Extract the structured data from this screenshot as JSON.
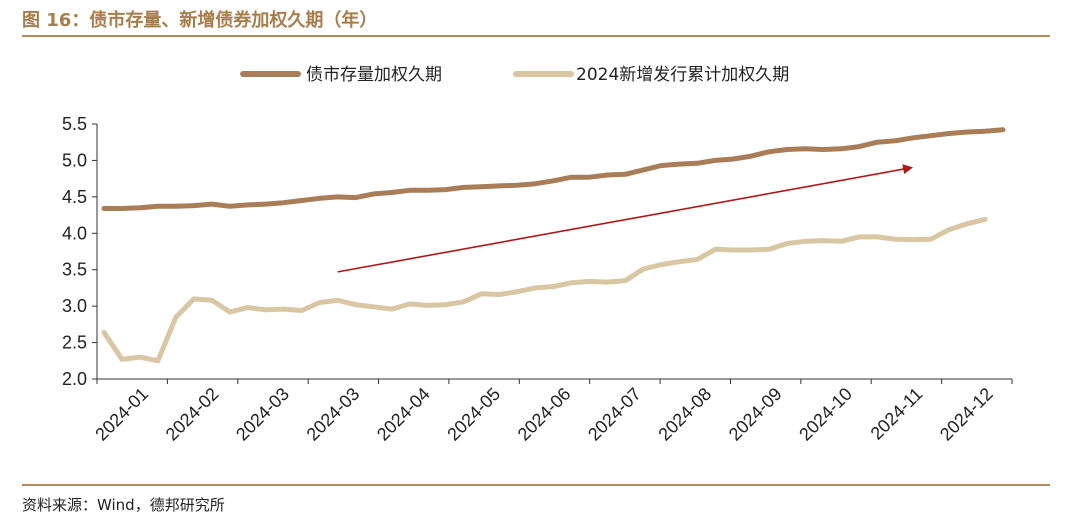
{
  "header": {
    "title": "图 16：债市存量、新增债券加权久期（年）"
  },
  "footer": {
    "source": "资料来源：Wind，德邦研究所"
  },
  "chart_data": {
    "type": "line",
    "title": "",
    "xlabel": "",
    "ylabel": "",
    "ylim": [
      2.0,
      5.5
    ],
    "yticks": [
      "2.0",
      "2.5",
      "3.0",
      "3.5",
      "4.0",
      "4.5",
      "5.0",
      "5.5"
    ],
    "xtick_labels": [
      "2024-01",
      "2024-02",
      "2024-03",
      "2024-03",
      "2024-04",
      "2024-05",
      "2024-06",
      "2024-07",
      "2024-08",
      "2024-09",
      "2024-10",
      "2024-11",
      "2024-12"
    ],
    "legend_position": "top",
    "grid": false,
    "series": [
      {
        "name": "债市存量加权久期",
        "color": "#a87d57",
        "values": [
          4.34,
          4.34,
          4.35,
          4.37,
          4.37,
          4.38,
          4.4,
          4.37,
          4.39,
          4.4,
          4.42,
          4.45,
          4.48,
          4.5,
          4.49,
          4.54,
          4.56,
          4.59,
          4.59,
          4.6,
          4.63,
          4.64,
          4.65,
          4.66,
          4.68,
          4.72,
          4.77,
          4.77,
          4.8,
          4.81,
          4.87,
          4.93,
          4.95,
          4.96,
          5.0,
          5.02,
          5.06,
          5.12,
          5.15,
          5.16,
          5.15,
          5.16,
          5.19,
          5.25,
          5.27,
          5.31,
          5.34,
          5.37,
          5.39,
          5.4,
          5.42
        ]
      },
      {
        "name": "2024新增发行累计加权久期",
        "color": "#d9c6a2",
        "values": [
          2.64,
          2.27,
          2.3,
          2.25,
          2.85,
          3.1,
          3.08,
          2.92,
          2.98,
          2.95,
          2.96,
          2.94,
          3.05,
          3.08,
          3.02,
          2.99,
          2.96,
          3.03,
          3.01,
          3.02,
          3.06,
          3.17,
          3.16,
          3.2,
          3.25,
          3.27,
          3.32,
          3.34,
          3.33,
          3.35,
          3.51,
          3.57,
          3.61,
          3.64,
          3.78,
          3.77,
          3.77,
          3.78,
          3.86,
          3.89,
          3.9,
          3.89,
          3.95,
          3.95,
          3.92,
          3.91,
          3.92,
          4.05,
          4.13,
          4.19
        ]
      }
    ],
    "annotation": {
      "type": "arrow",
      "color": "#b01818",
      "from": {
        "index": 13,
        "value": 3.47
      },
      "to": {
        "index": 45,
        "value": 4.9
      }
    }
  }
}
